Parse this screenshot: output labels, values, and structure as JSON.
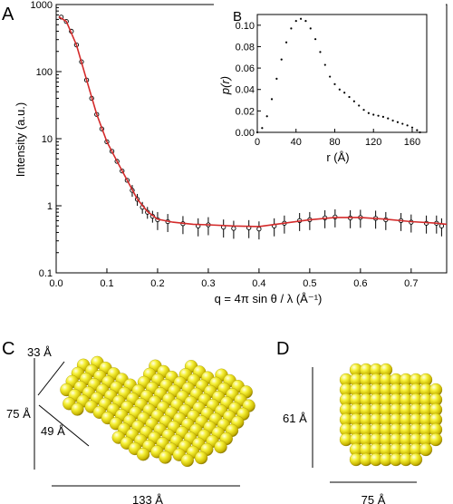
{
  "panels": {
    "a": "A",
    "b": "B",
    "c": "C",
    "d": "D"
  },
  "colors": {
    "fit_line": "#d42a2a",
    "points": "#000000",
    "sphere": "#f2ee1a"
  },
  "chart_data": [
    {
      "type": "scatter",
      "panel": "A",
      "xlabel": "q = 4π sin θ / λ (Å⁻¹)",
      "ylabel": "Intensity (a.u.)",
      "xscale": "linear",
      "yscale": "log",
      "xlim": [
        0,
        0.77
      ],
      "ylim": [
        0.1,
        1000
      ],
      "xticks": [
        "0.0",
        "0.1",
        "0.2",
        "0.3",
        "0.4",
        "0.5",
        "0.6",
        "0.7"
      ],
      "yticks": [
        "0.1",
        "1",
        "10",
        "100",
        "1000"
      ],
      "series": [
        {
          "style": "points with error bars",
          "x": [
            0.01,
            0.02,
            0.03,
            0.04,
            0.05,
            0.06,
            0.07,
            0.08,
            0.09,
            0.1,
            0.11,
            0.12,
            0.13,
            0.14,
            0.15,
            0.16,
            0.17,
            0.18,
            0.19,
            0.2,
            0.22,
            0.25,
            0.28,
            0.3,
            0.33,
            0.35,
            0.38,
            0.4,
            0.43,
            0.45,
            0.48,
            0.5,
            0.53,
            0.55,
            0.58,
            0.6,
            0.63,
            0.65,
            0.68,
            0.7,
            0.73,
            0.75,
            0.76
          ],
          "y": [
            650,
            560,
            400,
            250,
            140,
            75,
            40,
            23,
            14,
            9,
            6.5,
            4.6,
            3.3,
            2.4,
            1.7,
            1.25,
            0.95,
            0.8,
            0.7,
            0.62,
            0.58,
            0.54,
            0.5,
            0.52,
            0.48,
            0.46,
            0.47,
            0.45,
            0.5,
            0.55,
            0.6,
            0.62,
            0.66,
            0.68,
            0.66,
            0.67,
            0.65,
            0.62,
            0.6,
            0.57,
            0.55,
            0.55,
            0.5
          ]
        },
        {
          "style": "fit line",
          "x": [
            0.005,
            0.02,
            0.04,
            0.06,
            0.08,
            0.1,
            0.12,
            0.14,
            0.16,
            0.18,
            0.2,
            0.23,
            0.27,
            0.3,
            0.35,
            0.4,
            0.45,
            0.5,
            0.55,
            0.6,
            0.65,
            0.7,
            0.75,
            0.77
          ],
          "y": [
            660,
            560,
            250,
            75,
            23,
            9,
            4.6,
            2.4,
            1.25,
            0.82,
            0.63,
            0.57,
            0.53,
            0.52,
            0.5,
            0.49,
            0.55,
            0.62,
            0.67,
            0.67,
            0.63,
            0.58,
            0.55,
            0.53
          ]
        }
      ]
    },
    {
      "type": "scatter",
      "panel": "B",
      "xlabel": "r (Å)",
      "ylabel": "p(r)",
      "xlim": [
        0,
        175
      ],
      "ylim": [
        0,
        0.11
      ],
      "xticks": [
        "0",
        "40",
        "80",
        "120",
        "160"
      ],
      "yticks": [
        "0.00",
        "0.02",
        "0.04",
        "0.06",
        "0.08",
        "0.10"
      ],
      "x": [
        0,
        5,
        10,
        15,
        20,
        25,
        30,
        35,
        40,
        45,
        50,
        55,
        60,
        65,
        70,
        75,
        80,
        85,
        90,
        95,
        100,
        105,
        110,
        115,
        120,
        125,
        130,
        135,
        140,
        145,
        150,
        155,
        160,
        165,
        168
      ],
      "y": [
        0.0,
        0.004,
        0.015,
        0.031,
        0.05,
        0.068,
        0.084,
        0.097,
        0.104,
        0.106,
        0.104,
        0.097,
        0.087,
        0.075,
        0.063,
        0.052,
        0.045,
        0.04,
        0.037,
        0.033,
        0.029,
        0.025,
        0.021,
        0.018,
        0.0165,
        0.0155,
        0.0145,
        0.013,
        0.011,
        0.0095,
        0.008,
        0.0065,
        0.0045,
        0.002,
        0.0
      ]
    }
  ],
  "panel_c": {
    "dim_top": "33 Å",
    "dim_left": "75 Å",
    "dim_mid": "49 Å",
    "dim_bottom": "133 Å"
  },
  "panel_d": {
    "dim_left": "61 Å",
    "dim_bottom": "75 Å"
  }
}
